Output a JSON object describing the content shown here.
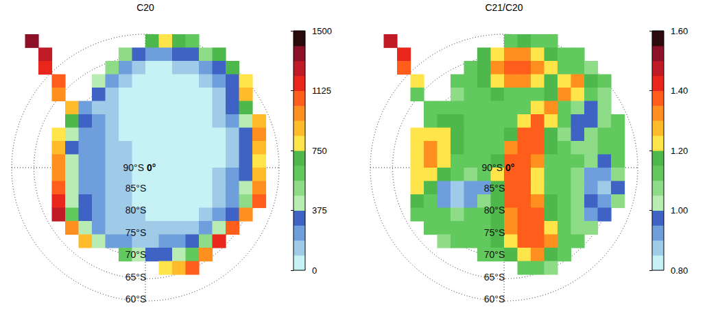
{
  "chart_data": [
    {
      "type": "heatmap",
      "title": "C20",
      "x": [
        -28.5,
        -25.5,
        -22.5,
        -19.5,
        -16.5,
        -13.5,
        -10.5,
        -7.5,
        -4.5,
        -1.5,
        1.5,
        4.5,
        7.5,
        10.5,
        13.5,
        16.5,
        19.5,
        22.5,
        25.5,
        28.5
      ],
      "y": [
        28.5,
        25.5,
        22.5,
        19.5,
        16.5,
        13.5,
        10.5,
        7.5,
        4.5,
        1.5,
        -1.5,
        -4.5,
        -7.5,
        -10.5,
        -13.5,
        -16.5,
        -19.5,
        -22.5,
        -25.5,
        -28.5
      ],
      "xlim": [
        -30,
        30
      ],
      "ylim": [
        -30,
        30
      ],
      "tick_labels": false,
      "values": [
        [
          null,
          1400,
          null,
          null,
          null,
          null,
          null,
          null,
          null,
          null,
          700,
          800,
          700,
          600,
          null,
          null,
          null,
          null,
          null,
          null
        ],
        [
          null,
          null,
          1300,
          null,
          null,
          null,
          null,
          null,
          500,
          300,
          250,
          250,
          300,
          350,
          500,
          700,
          null,
          null,
          null,
          null
        ],
        [
          null,
          null,
          1200,
          null,
          null,
          null,
          null,
          500,
          200,
          150,
          80,
          80,
          120,
          180,
          250,
          350,
          700,
          null,
          null,
          null
        ],
        [
          null,
          null,
          null,
          1100,
          null,
          null,
          400,
          200,
          120,
          60,
          50,
          40,
          50,
          80,
          150,
          250,
          350,
          800,
          null,
          null
        ],
        [
          null,
          null,
          null,
          1000,
          null,
          null,
          300,
          150,
          80,
          50,
          40,
          30,
          30,
          50,
          80,
          180,
          300,
          900,
          null,
          null
        ],
        [
          null,
          null,
          null,
          null,
          900,
          250,
          150,
          100,
          60,
          40,
          30,
          30,
          30,
          40,
          60,
          150,
          300,
          700,
          null,
          null
        ],
        [
          null,
          null,
          null,
          null,
          700,
          300,
          200,
          120,
          60,
          40,
          30,
          30,
          30,
          30,
          50,
          100,
          200,
          400,
          900,
          null
        ],
        [
          null,
          null,
          null,
          800,
          400,
          250,
          200,
          150,
          80,
          50,
          30,
          30,
          30,
          30,
          40,
          80,
          150,
          300,
          1000,
          null
        ],
        [
          null,
          null,
          null,
          900,
          350,
          250,
          200,
          150,
          100,
          60,
          40,
          30,
          30,
          30,
          40,
          80,
          150,
          300,
          900,
          null
        ],
        [
          null,
          null,
          null,
          1000,
          400,
          250,
          200,
          150,
          100,
          60,
          40,
          30,
          30,
          30,
          40,
          80,
          150,
          300,
          800,
          null
        ],
        [
          null,
          null,
          null,
          1000,
          400,
          250,
          200,
          150,
          100,
          70,
          50,
          40,
          30,
          30,
          50,
          100,
          200,
          350,
          900,
          null
        ],
        [
          null,
          null,
          null,
          1100,
          400,
          250,
          200,
          150,
          100,
          70,
          50,
          40,
          30,
          40,
          60,
          120,
          200,
          400,
          1000,
          null
        ],
        [
          null,
          null,
          null,
          1200,
          450,
          300,
          200,
          150,
          100,
          80,
          60,
          50,
          40,
          50,
          80,
          150,
          250,
          500,
          1100,
          null
        ],
        [
          null,
          null,
          null,
          1300,
          600,
          300,
          200,
          150,
          120,
          100,
          80,
          60,
          60,
          80,
          120,
          200,
          350,
          1000,
          null,
          null
        ],
        [
          null,
          null,
          null,
          null,
          1000,
          400,
          250,
          180,
          150,
          120,
          100,
          100,
          120,
          150,
          250,
          400,
          1100,
          null,
          null,
          null
        ],
        [
          null,
          null,
          null,
          null,
          null,
          900,
          400,
          250,
          200,
          180,
          180,
          200,
          250,
          350,
          500,
          1200,
          null,
          null,
          null,
          null
        ],
        [
          null,
          null,
          null,
          null,
          null,
          null,
          null,
          null,
          600,
          400,
          350,
          350,
          400,
          600,
          1000,
          null,
          null,
          null,
          null,
          null
        ],
        [
          null,
          null,
          null,
          null,
          null,
          null,
          null,
          null,
          null,
          null,
          null,
          800,
          900,
          1100,
          null,
          null,
          null,
          null,
          null,
          null
        ],
        [
          null,
          null,
          null,
          null,
          null,
          null,
          null,
          null,
          null,
          null,
          null,
          null,
          null,
          null,
          null,
          null,
          null,
          null,
          null,
          null
        ],
        [
          null,
          null,
          null,
          null,
          null,
          null,
          null,
          null,
          null,
          null,
          null,
          null,
          null,
          null,
          null,
          null,
          null,
          null,
          null,
          null
        ]
      ],
      "colorbar": {
        "range": [
          0,
          1500
        ],
        "ticks": [
          0,
          375,
          750,
          1125,
          1500
        ],
        "colors": [
          "#c6f2f5",
          "#9fcbe8",
          "#6e9fdc",
          "#3f63c4",
          "#b9ecb3",
          "#8fdc88",
          "#62c95e",
          "#4fb84c",
          "#ffe44a",
          "#ffbb2a",
          "#ff9020",
          "#ff5d1c",
          "#e8261c",
          "#c01a26",
          "#8c1028",
          "#2a0a0a"
        ]
      },
      "rings": [
        {
          "value": -90,
          "label": "90°S"
        },
        {
          "value": -85,
          "label": "85°S"
        },
        {
          "value": -80,
          "label": "80°S"
        },
        {
          "value": -75,
          "label": "75°S"
        },
        {
          "value": -70,
          "label": "70°S"
        },
        {
          "value": -65,
          "label": "65°S"
        },
        {
          "value": -60,
          "label": "60°S"
        }
      ],
      "meridians": [
        {
          "value": 0,
          "label": "0°"
        }
      ]
    },
    {
      "type": "heatmap",
      "title": "C21/C20",
      "x": [
        -28.5,
        -25.5,
        -22.5,
        -19.5,
        -16.5,
        -13.5,
        -10.5,
        -7.5,
        -4.5,
        -1.5,
        1.5,
        4.5,
        7.5,
        10.5,
        13.5,
        16.5,
        19.5,
        22.5,
        25.5,
        28.5
      ],
      "y": [
        28.5,
        25.5,
        22.5,
        19.5,
        16.5,
        13.5,
        10.5,
        7.5,
        4.5,
        1.5,
        -1.5,
        -4.5,
        -7.5,
        -10.5,
        -13.5,
        -16.5,
        -19.5,
        -22.5,
        -25.5,
        -28.5
      ],
      "xlim": [
        -30,
        30
      ],
      "ylim": [
        -30,
        30
      ],
      "tick_labels": false,
      "values": [
        [
          null,
          1.5,
          null,
          null,
          null,
          null,
          null,
          null,
          null,
          null,
          1.15,
          1.2,
          1.15,
          1.1,
          null,
          null,
          null,
          null,
          null,
          null
        ],
        [
          null,
          null,
          1.45,
          null,
          null,
          null,
          null,
          null,
          1.2,
          1.25,
          1.3,
          1.3,
          1.25,
          1.2,
          1.1,
          1.1,
          null,
          null,
          null,
          null
        ],
        [
          null,
          null,
          1.35,
          null,
          null,
          null,
          null,
          1.15,
          1.2,
          1.3,
          1.35,
          1.35,
          1.3,
          1.25,
          1.15,
          1.1,
          1.05,
          null,
          null,
          null
        ],
        [
          null,
          null,
          null,
          1.25,
          null,
          null,
          1.1,
          1.15,
          1.2,
          1.25,
          1.3,
          1.3,
          1.25,
          1.2,
          1.25,
          1.3,
          1.2,
          1.1,
          null,
          null
        ],
        [
          null,
          null,
          null,
          1.15,
          null,
          null,
          1.05,
          1.1,
          1.15,
          1.2,
          1.15,
          1.1,
          1.1,
          1.2,
          1.3,
          1.25,
          1.15,
          1.05,
          null,
          null
        ],
        [
          null,
          null,
          null,
          null,
          1.1,
          1.1,
          1.1,
          1.15,
          1.15,
          1.1,
          1.1,
          1.15,
          1.25,
          1.3,
          1.15,
          1.05,
          1,
          1.05,
          null,
          null
        ],
        [
          null,
          null,
          null,
          null,
          1.15,
          1.2,
          1.2,
          1.15,
          1.1,
          1.1,
          1.15,
          1.25,
          1.35,
          1.25,
          1.1,
          1,
          1,
          1.05,
          1.1,
          null
        ],
        [
          null,
          null,
          null,
          1.25,
          1.25,
          1.25,
          1.2,
          1.15,
          1.1,
          1.1,
          1.2,
          1.35,
          1.4,
          1.2,
          1.05,
          1,
          1.05,
          1.1,
          1.1,
          null
        ],
        [
          null,
          null,
          null,
          1.25,
          1.3,
          1.25,
          1.2,
          1.15,
          1.1,
          1.15,
          1.3,
          1.4,
          1.35,
          1.2,
          1.1,
          1.05,
          1.05,
          1.1,
          1.15,
          null
        ],
        [
          null,
          null,
          null,
          1.25,
          1.3,
          1.25,
          1.15,
          1.1,
          1.1,
          1.2,
          1.35,
          1.4,
          1.3,
          1.15,
          1.1,
          1.1,
          1.05,
          1,
          1.1,
          null
        ],
        [
          null,
          null,
          null,
          1.25,
          1.25,
          1.2,
          1.1,
          1.05,
          1.1,
          1.25,
          1.4,
          1.4,
          1.25,
          1.15,
          1.1,
          1.05,
          0.95,
          0.95,
          1.05,
          null
        ],
        [
          null,
          null,
          null,
          1.25,
          1.2,
          0.95,
          0.9,
          0.95,
          0.95,
          1.2,
          1.4,
          1.35,
          1.25,
          1.15,
          1.1,
          1.05,
          0.95,
          0.9,
          1,
          null
        ],
        [
          null,
          null,
          null,
          1.2,
          1.15,
          0.95,
          0.9,
          0.95,
          1.05,
          1.2,
          1.35,
          1.4,
          1.3,
          1.2,
          1.1,
          1.05,
          1,
          0.95,
          1.05,
          null
        ],
        [
          null,
          null,
          null,
          1.15,
          1.15,
          1.1,
          1.05,
          1.1,
          1.15,
          1.2,
          1.3,
          1.4,
          1.35,
          1.2,
          1.1,
          1.05,
          0.95,
          1,
          null,
          null
        ],
        [
          null,
          null,
          null,
          null,
          1.1,
          1.1,
          1.1,
          1.1,
          1.15,
          1.2,
          1.3,
          1.4,
          1.4,
          1.25,
          1.1,
          1.05,
          1.05,
          null,
          null,
          null
        ],
        [
          null,
          null,
          null,
          null,
          null,
          1.05,
          1.1,
          1.1,
          1.15,
          1.2,
          1.25,
          1.35,
          1.4,
          1.3,
          1.15,
          1.1,
          null,
          null,
          null,
          null
        ],
        [
          null,
          null,
          null,
          null,
          null,
          null,
          null,
          null,
          1.1,
          1.15,
          1.2,
          1.25,
          1.3,
          1.2,
          1.1,
          null,
          null,
          null,
          null,
          null
        ],
        [
          null,
          null,
          null,
          null,
          null,
          null,
          null,
          null,
          null,
          null,
          null,
          1.1,
          1.1,
          1.05,
          null,
          null,
          null,
          null,
          null,
          null
        ],
        [
          null,
          null,
          null,
          null,
          null,
          null,
          null,
          null,
          null,
          null,
          null,
          null,
          null,
          null,
          null,
          null,
          null,
          null,
          null,
          null
        ],
        [
          null,
          null,
          null,
          null,
          null,
          null,
          null,
          null,
          null,
          null,
          null,
          null,
          null,
          null,
          null,
          null,
          null,
          null,
          null,
          null
        ]
      ],
      "colorbar": {
        "range": [
          0.8,
          1.6
        ],
        "ticks": [
          {
            "value": 0.8,
            "label": "0.80"
          },
          {
            "value": 1,
            "label": "1.00"
          },
          {
            "value": 1.2,
            "label": "1.20"
          },
          {
            "value": 1.4,
            "label": "1.40"
          },
          {
            "value": 1.6,
            "label": "1.60"
          }
        ],
        "colors": [
          "#c6f2f5",
          "#9fcbe8",
          "#6e9fdc",
          "#3f63c4",
          "#b9ecb3",
          "#8fdc88",
          "#62c95e",
          "#4fb84c",
          "#ffe44a",
          "#ffbb2a",
          "#ff9020",
          "#ff5d1c",
          "#e8261c",
          "#c01a26",
          "#8c1028",
          "#2a0a0a"
        ]
      },
      "rings": [
        {
          "value": -90,
          "label": "90°S"
        },
        {
          "value": -85,
          "label": "85°S"
        },
        {
          "value": -80,
          "label": "80°S"
        },
        {
          "value": -75,
          "label": "75°S"
        },
        {
          "value": -70,
          "label": "70°S"
        },
        {
          "value": -65,
          "label": "65°S"
        },
        {
          "value": -60,
          "label": "60°S"
        }
      ],
      "meridians": [
        {
          "value": 0,
          "label": "0°"
        }
      ]
    }
  ]
}
